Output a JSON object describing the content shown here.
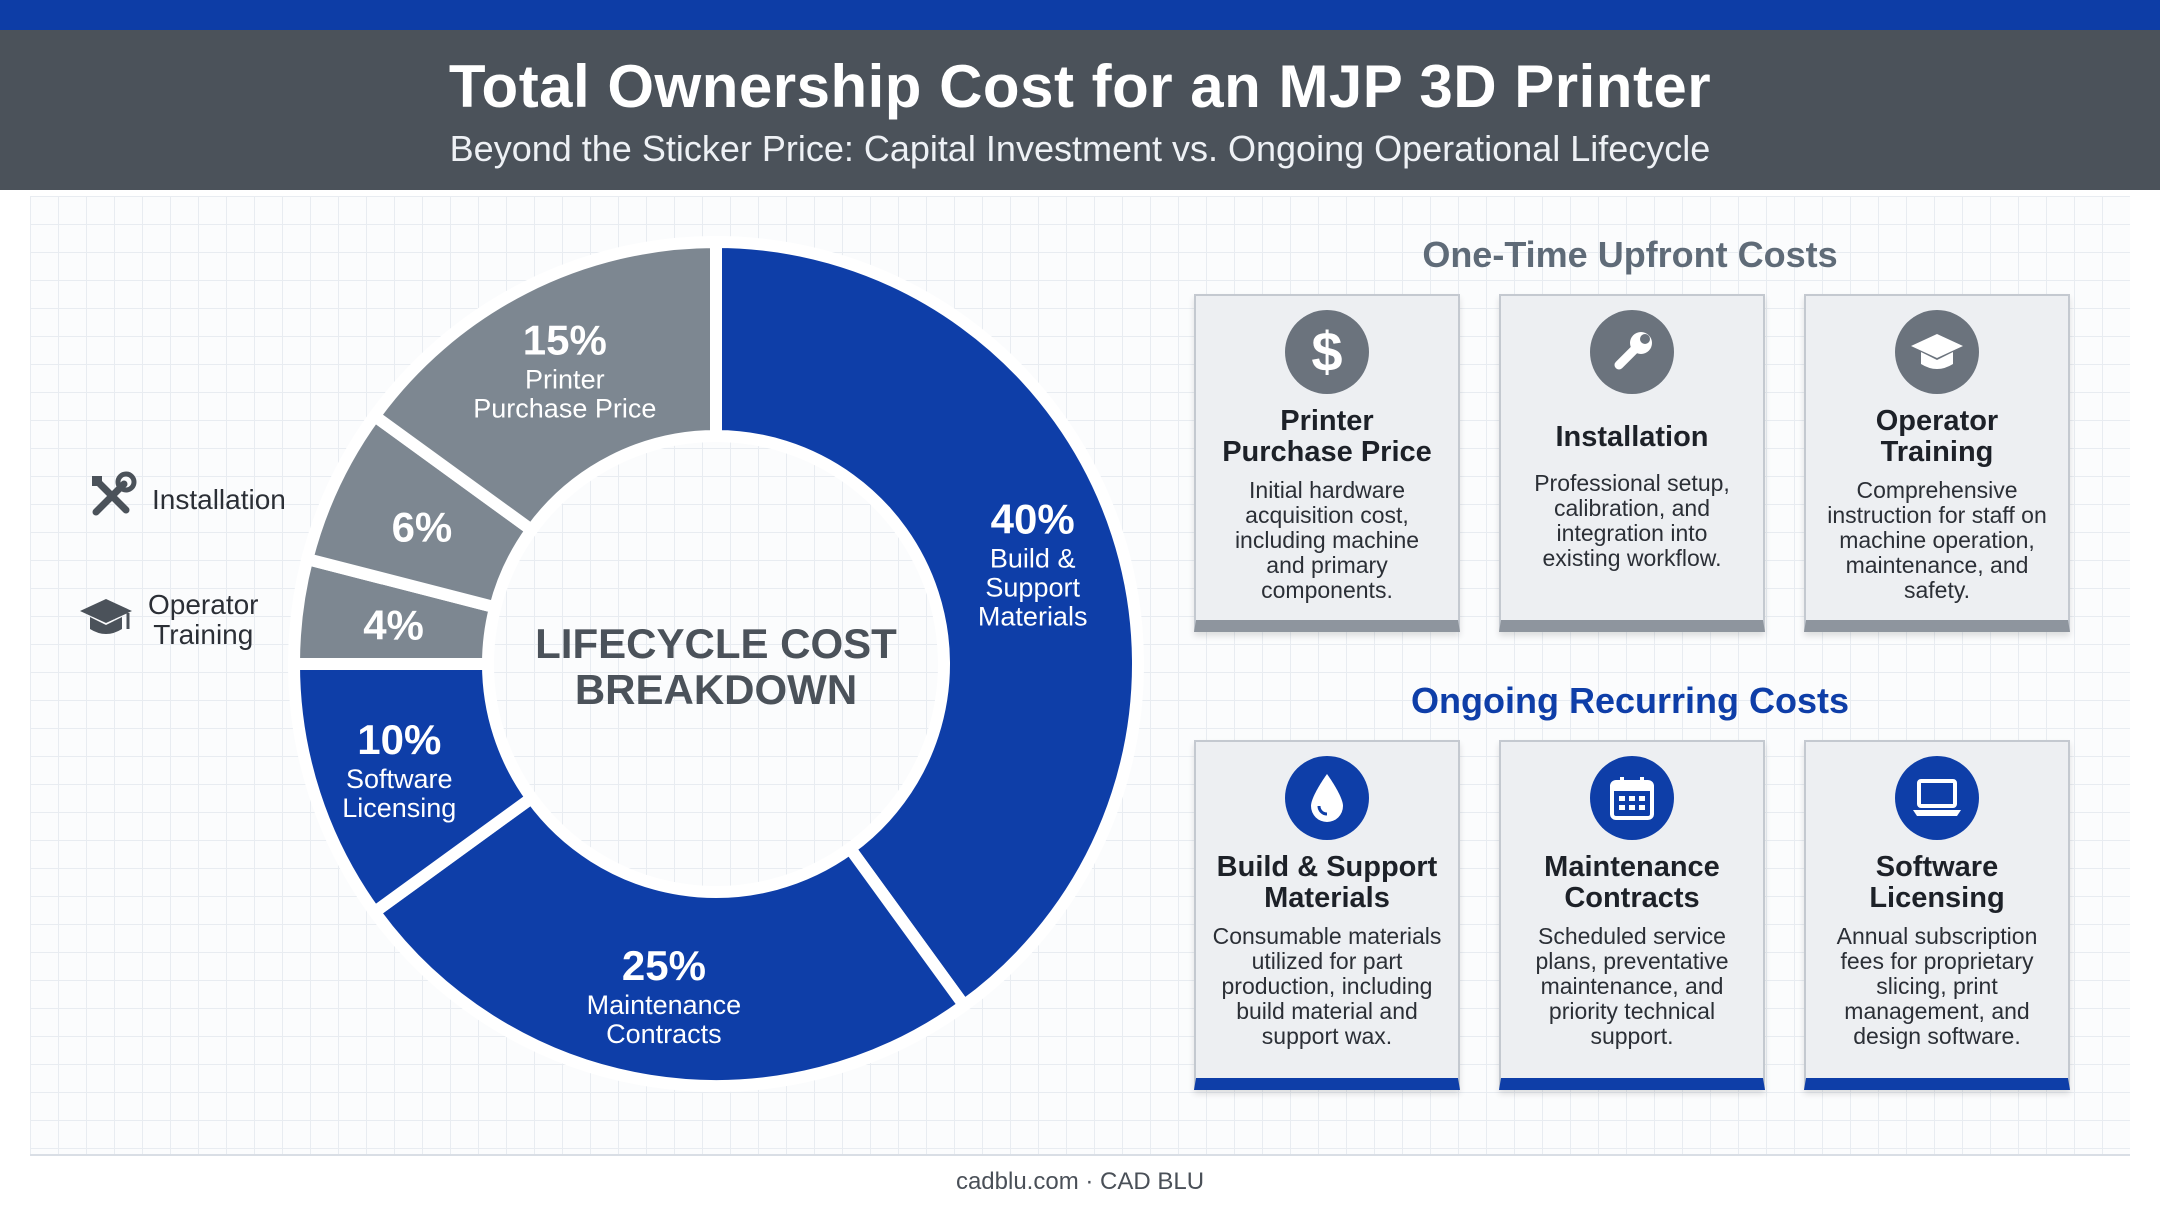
{
  "header": {
    "title": "Total Ownership Cost for an MJP 3D Printer",
    "subtitle": "Beyond the Sticker Price: Capital Investment vs. Ongoing Operational Lifecycle"
  },
  "colors": {
    "capital": "#7d8791",
    "ongoing": "#0e3ea8",
    "header_bg": "#4b525a",
    "top_bar": "#0d3da6"
  },
  "chart_data": {
    "type": "pie",
    "center_label": [
      "LIFECYCLE COST",
      "BREAKDOWN"
    ],
    "slices": [
      {
        "value_label": "40%",
        "value": 40,
        "name_lines": [
          "Build &",
          "Support",
          "Materials"
        ],
        "group": "ongoing"
      },
      {
        "value_label": "25%",
        "value": 25,
        "name_lines": [
          "Maintenance",
          "Contracts"
        ],
        "group": "ongoing"
      },
      {
        "value_label": "10%",
        "value": 10,
        "name_lines": [
          "Software",
          "Licensing"
        ],
        "group": "ongoing"
      },
      {
        "value_label": "4%",
        "value": 4,
        "name_lines": [],
        "group": "capital"
      },
      {
        "value_label": "6%",
        "value": 6,
        "name_lines": [],
        "group": "capital"
      },
      {
        "value_label": "15%",
        "value": 15,
        "name_lines": [
          "Printer",
          "Purchase Price"
        ],
        "group": "capital"
      }
    ],
    "external_labels": [
      {
        "text": "Installation",
        "icon": "wrench-screwdriver-icon"
      },
      {
        "text_lines": [
          "Operator",
          "Training"
        ],
        "icon": "graduation-cap-icon"
      }
    ]
  },
  "upfront": {
    "title": "One-Time Upfront Costs",
    "title_color": "#5f6b78",
    "cards": [
      {
        "icon": "dollar-icon",
        "title_lines": [
          "Printer",
          "Purchase Price"
        ],
        "desc_lines": [
          "Initial hardware",
          "acquisition cost,",
          "including machine",
          "and primary",
          "components."
        ]
      },
      {
        "icon": "wrench-icon",
        "title_lines": [
          "Installation"
        ],
        "desc_lines": [
          "Professional setup,",
          "calibration, and",
          "integration into",
          "existing workflow."
        ]
      },
      {
        "icon": "graduation-cap-icon",
        "title_lines": [
          "Operator",
          "Training"
        ],
        "desc_lines": [
          "Comprehensive",
          "instruction for staff on",
          "machine operation,",
          "maintenance, and",
          "safety."
        ]
      }
    ]
  },
  "ongoing": {
    "title": "Ongoing Recurring Costs",
    "title_color": "#0e3ea8",
    "cards": [
      {
        "icon": "droplet-icon",
        "title_lines": [
          "Build & Support",
          "Materials"
        ],
        "desc_lines": [
          "Consumable materials",
          "utilized for part",
          "production, including",
          "build material and",
          "support wax."
        ]
      },
      {
        "icon": "calendar-icon",
        "title_lines": [
          "Maintenance",
          "Contracts"
        ],
        "desc_lines": [
          "Scheduled service",
          "plans, preventative",
          "maintenance, and",
          "priority technical",
          "support."
        ]
      },
      {
        "icon": "laptop-icon",
        "title_lines": [
          "Software",
          "Licensing"
        ],
        "desc_lines": [
          "Annual subscription",
          "fees for proprietary",
          "slicing, print",
          "management, and",
          "design software."
        ]
      }
    ]
  },
  "footer": {
    "text": "cadblu.com · CAD BLU"
  }
}
